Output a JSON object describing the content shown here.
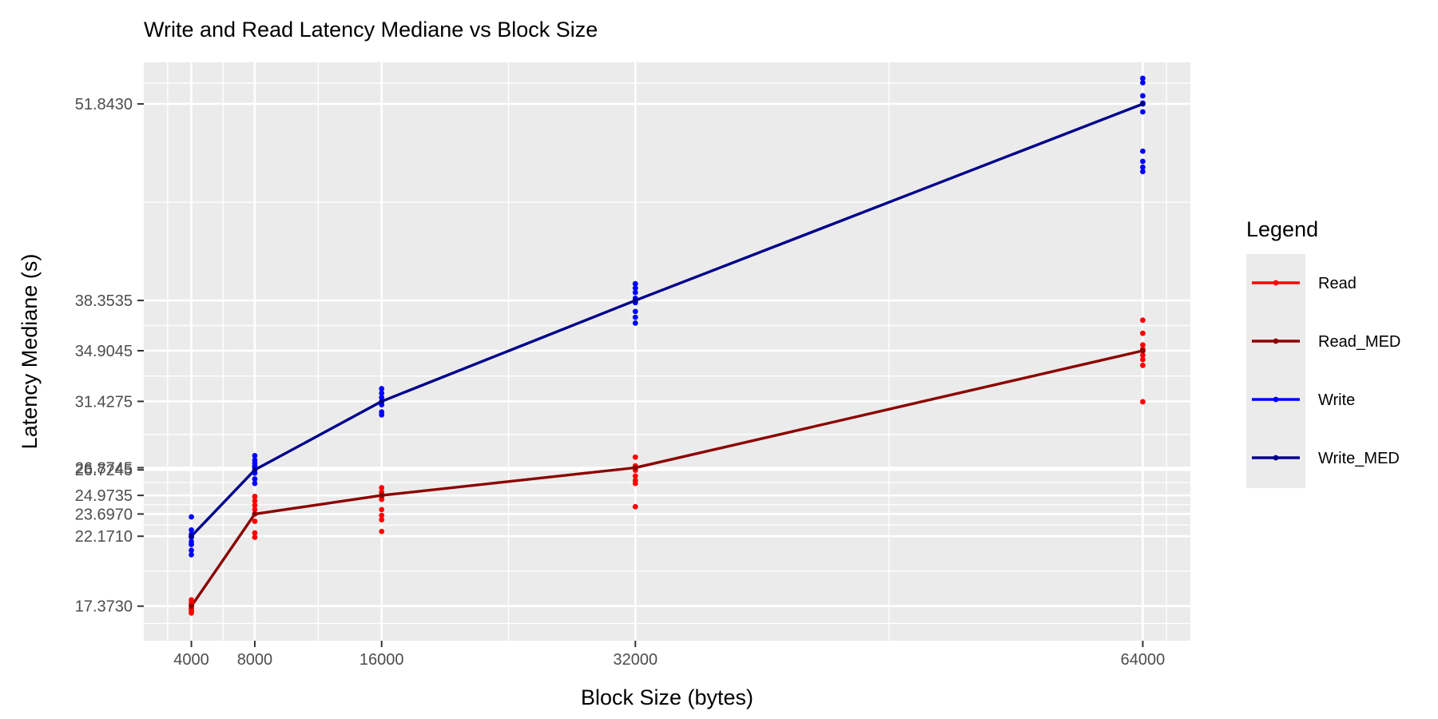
{
  "chart_data": {
    "type": "line",
    "title": "Write and Read Latency Mediane vs Block Size",
    "xlabel": "Block Size (bytes)",
    "ylabel": "Latency Mediane (s)",
    "x_ticks": [
      4000,
      8000,
      16000,
      32000,
      64000
    ],
    "x_tick_labels": [
      "4000",
      "8000",
      "16000",
      "32000",
      "64000"
    ],
    "y_ticks": [
      17.373,
      22.171,
      23.697,
      24.9735,
      26.7245,
      26.8745,
      31.4275,
      34.9045,
      38.3535,
      51.843
    ],
    "y_tick_labels": [
      "17.3730",
      "22.1710",
      "23.6970",
      "24.9735",
      "26.7245",
      "26.8745",
      "31.4275",
      "34.9045",
      "38.3535",
      "51.8430"
    ],
    "xlim": [
      1000,
      67000
    ],
    "ylim": [
      15.0,
      54.7
    ],
    "grid": true,
    "legend_title": "Legend",
    "legend_position": "right",
    "series": [
      {
        "name": "Read",
        "kind": "points",
        "color": "#ff0000",
        "x": [
          4000,
          4000,
          4000,
          4000,
          4000,
          4000,
          4000,
          8000,
          8000,
          8000,
          8000,
          8000,
          8000,
          8000,
          8000,
          16000,
          16000,
          16000,
          16000,
          16000,
          16000,
          16000,
          16000,
          32000,
          32000,
          32000,
          32000,
          32000,
          32000,
          32000,
          64000,
          64000,
          64000,
          64000,
          64000,
          64000,
          64000,
          64000,
          64000
        ],
        "y": [
          17.2,
          17.6,
          17.8,
          17.1,
          17.4,
          16.9,
          17.0,
          24.9,
          24.6,
          24.3,
          23.7,
          23.2,
          22.4,
          22.1,
          24.0,
          25.5,
          25.2,
          24.9,
          24.7,
          24.0,
          23.6,
          23.3,
          22.5,
          27.6,
          27.0,
          26.7,
          26.3,
          26.0,
          25.8,
          24.2,
          37.0,
          36.1,
          35.3,
          35.0,
          34.9,
          34.6,
          34.3,
          33.9,
          31.4
        ]
      },
      {
        "name": "Read_MED",
        "kind": "line",
        "color": "#8b0000",
        "x": [
          4000,
          8000,
          16000,
          32000,
          64000
        ],
        "y": [
          17.373,
          23.697,
          24.9735,
          26.8745,
          34.9045
        ]
      },
      {
        "name": "Write",
        "kind": "points",
        "color": "#0000ff",
        "x": [
          4000,
          4000,
          4000,
          4000,
          4000,
          4000,
          4000,
          4000,
          8000,
          8000,
          8000,
          8000,
          8000,
          8000,
          8000,
          8000,
          16000,
          16000,
          16000,
          16000,
          16000,
          16000,
          16000,
          32000,
          32000,
          32000,
          32000,
          32000,
          32000,
          32000,
          32000,
          64000,
          64000,
          64000,
          64000,
          64000,
          64000,
          64000,
          64000,
          64000
        ],
        "y": [
          23.5,
          22.6,
          22.3,
          22.1,
          21.8,
          21.6,
          21.2,
          20.9,
          27.7,
          27.4,
          27.2,
          26.9,
          26.5,
          26.1,
          25.8,
          27.0,
          32.3,
          32.0,
          31.7,
          31.4,
          31.2,
          30.7,
          30.5,
          39.5,
          39.2,
          38.9,
          38.5,
          38.2,
          37.6,
          37.2,
          36.8,
          53.6,
          53.3,
          52.4,
          51.9,
          51.3,
          48.6,
          47.9,
          47.5,
          47.2
        ]
      },
      {
        "name": "Write_MED",
        "kind": "line",
        "color": "#00008b",
        "x": [
          4000,
          8000,
          16000,
          32000,
          64000
        ],
        "y": [
          22.171,
          26.7245,
          31.4275,
          38.3535,
          51.843
        ]
      }
    ]
  }
}
